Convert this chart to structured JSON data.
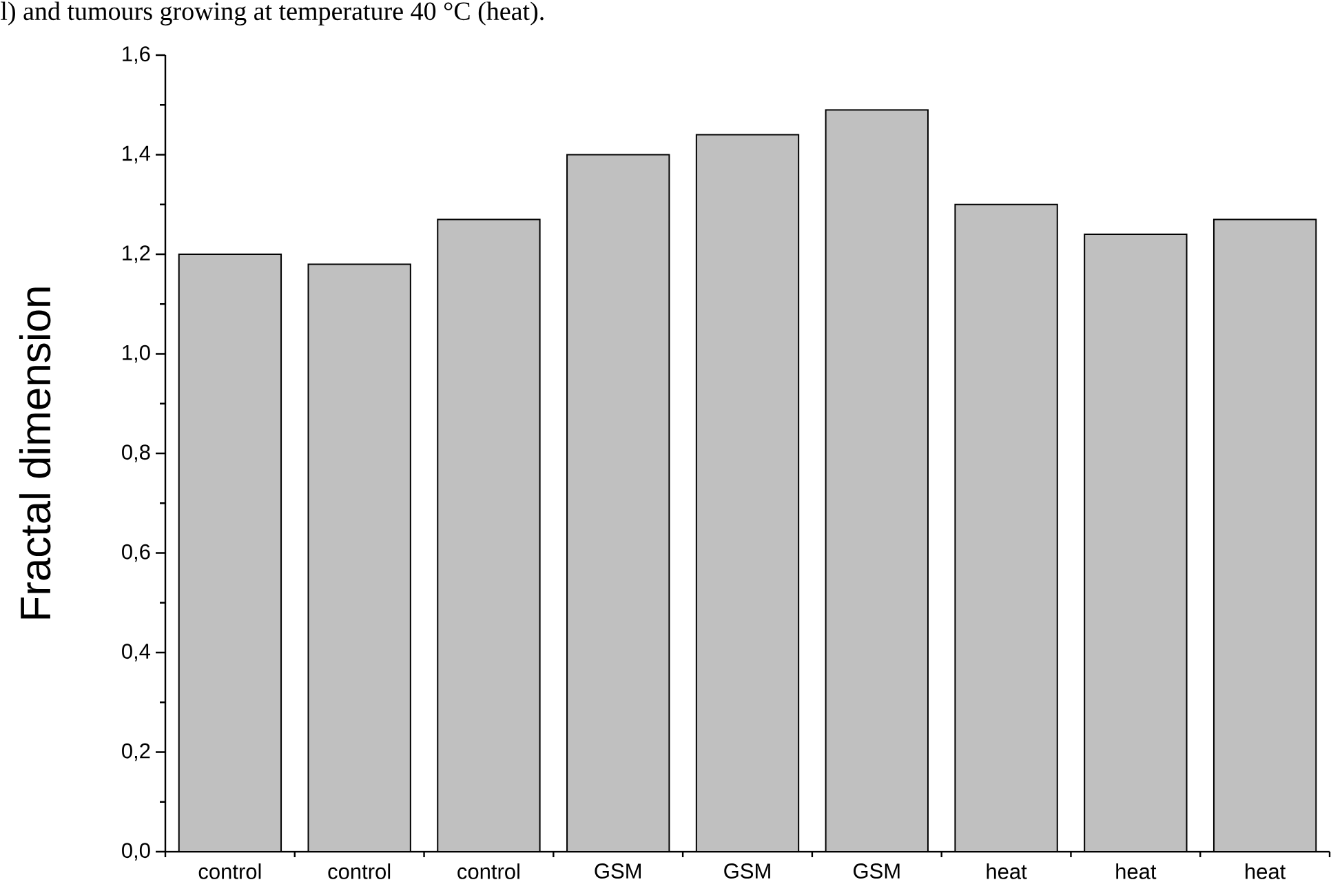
{
  "chart_data": {
    "type": "bar",
    "ylabel": "Fractal dimension",
    "annotations": [
      "l) and tumours growing at temperature 40 °C (heat)."
    ],
    "categories": [
      "control",
      "control",
      "control",
      "GSM",
      "GSM",
      "GSM",
      "heat",
      "heat",
      "heat"
    ],
    "values": [
      1.2,
      1.18,
      1.27,
      1.4,
      1.44,
      1.49,
      1.3,
      1.24,
      1.27
    ],
    "color": "#c0c0c0",
    "ylim": [
      0,
      1.6
    ],
    "yticks": [
      {
        "value": 0,
        "label": "0,0"
      },
      {
        "value": 0.2,
        "label": "0,2"
      },
      {
        "value": 0.4,
        "label": "0,4"
      },
      {
        "value": 0.6,
        "label": "0,6"
      },
      {
        "value": 0.8,
        "label": "0,8"
      },
      {
        "value": 1.0,
        "label": "1,0"
      },
      {
        "value": 1.2,
        "label": "1,2"
      },
      {
        "value": 1.4,
        "label": "1,4"
      },
      {
        "value": 1.6,
        "label": "1,6"
      }
    ],
    "grid": false
  }
}
